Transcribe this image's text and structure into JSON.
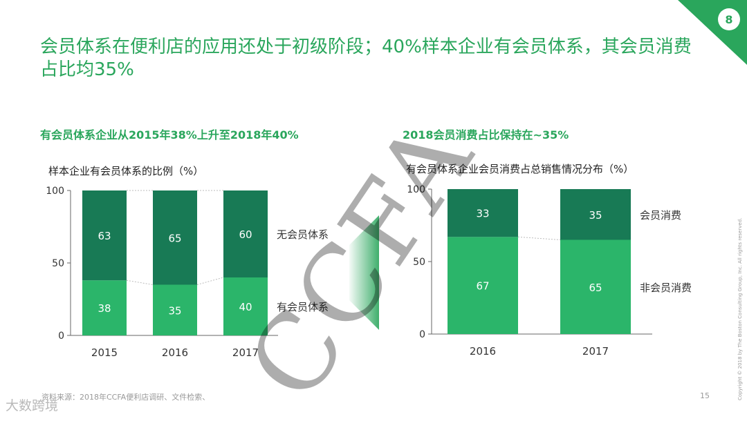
{
  "page_badge": "8",
  "headline": "会员体系在便利店的应用还处于初级阶段；40%样本企业有会员体系，其会员消费占比均35%",
  "left": {
    "subtitle": "有会员体系企业从2015年38%上升至2018年40%",
    "chart_title": "样本企业有会员体系的比例（%）"
  },
  "right": {
    "subtitle": "2018会员消费占比保持在~35%",
    "chart_title": "有会员体系企业会员消费占总销售情况分布（%）"
  },
  "chart_data": [
    {
      "type": "bar",
      "stacked": true,
      "title": "样本企业有会员体系的比例（%）",
      "categories": [
        "2015",
        "2016",
        "2017"
      ],
      "series": [
        {
          "name": "有会员体系",
          "values": [
            38,
            35,
            40
          ],
          "color": "#2bb56a"
        },
        {
          "name": "无会员体系",
          "values": [
            63,
            65,
            60
          ],
          "color": "#187a55"
        }
      ],
      "ylim": [
        0,
        100
      ],
      "yticks": [
        0,
        50,
        100
      ],
      "legend": "right"
    },
    {
      "type": "bar",
      "stacked": true,
      "title": "有会员体系企业会员消费占总销售情况分布（%）",
      "categories": [
        "2016",
        "2017"
      ],
      "series": [
        {
          "name": "非会员消费",
          "values": [
            67,
            65
          ],
          "color": "#2bb56a"
        },
        {
          "name": "会员消费",
          "values": [
            33,
            35
          ],
          "color": "#187a55"
        }
      ],
      "ylim": [
        0,
        100
      ],
      "yticks": [
        0,
        50,
        100
      ],
      "legend": "right"
    }
  ],
  "source": "资料来源：2018年CCFA便利店调研、文件检索、",
  "slide_number": "15",
  "copyright": "Copyright © 2018 by The Boston Consulting Group, Inc. All rights reserved.",
  "watermark": "CCFA",
  "logo": "大数跨境"
}
